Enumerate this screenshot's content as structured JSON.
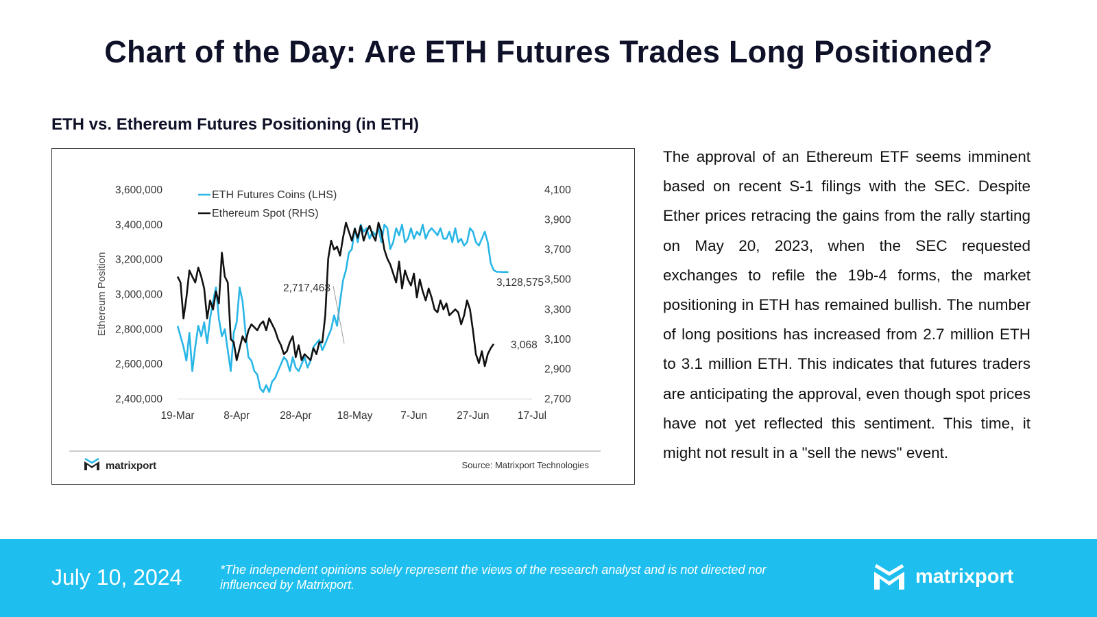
{
  "page": {
    "title": "Chart of the Day: Are ETH Futures Trades Long Positioned?",
    "chart_heading": "ETH vs. Ethereum Futures Positioning (in ETH)",
    "body_text": "The approval of an Ethereum ETF seems imminent based on recent S-1 filings with the SEC. Despite Ether prices retracing the gains from the rally starting on May 20, 2023, when the SEC requested exchanges to refile the 19b-4 forms, the market positioning in ETH has remained bullish. The number of long positions has increased from 2.7 million ETH to 3.1 million ETH. This indicates that futures traders are anticipating the approval, even though spot prices have not yet reflected this sentiment. This time, it might not result in a \"sell the news\" event."
  },
  "footer": {
    "date": "July 10, 2024",
    "disclaimer": "*The independent opinions solely represent the views of the research analyst and is not directed nor influenced by Matrixport.",
    "logo_text": "matrixport"
  },
  "chart_data": {
    "type": "line",
    "y_left_label": "Ethereum Position",
    "y_left_range": [
      2400000,
      3600000
    ],
    "y_left_ticks": [
      "3,600,000",
      "3,400,000",
      "3,200,000",
      "3,000,000",
      "2,800,000",
      "2,600,000",
      "2,400,000"
    ],
    "y_right_range": [
      2700,
      4100
    ],
    "y_right_ticks": [
      "4,100",
      "3,900",
      "3,700",
      "3,500",
      "3,300",
      "3,100",
      "2,900",
      "2,700"
    ],
    "x_ticks": [
      "19-Mar",
      "8-Apr",
      "28-Apr",
      "18-May",
      "7-Jun",
      "27-Jun",
      "17-Jul"
    ],
    "x_range_days": [
      0,
      120
    ],
    "legend": [
      "ETH Futures Coins (LHS)",
      "Ethereum Spot (RHS)"
    ],
    "annotations": {
      "futures_low": "2,717,463",
      "futures_last": "3,128,575",
      "spot_last": "3,068"
    },
    "logo_text": "matrixport",
    "source": "Source: Matrixport Technologies",
    "colors": {
      "futures": "#29b6e6",
      "spot": "#111111"
    },
    "series": [
      {
        "name": "ETH Futures Coins (LHS)",
        "axis": "left",
        "x": [
          0,
          1,
          2,
          3,
          4,
          5,
          6,
          7,
          8,
          9,
          10,
          11,
          12,
          13,
          14,
          15,
          16,
          17,
          18,
          19,
          20,
          21,
          22,
          23,
          24,
          25,
          26,
          27,
          28,
          29,
          30,
          31,
          32,
          33,
          34,
          35,
          36,
          37,
          38,
          39,
          40,
          41,
          42,
          43,
          44,
          45,
          46,
          47,
          48,
          49,
          50,
          51,
          52,
          53,
          54,
          55,
          56,
          57,
          58,
          59,
          60,
          61,
          62,
          63,
          64,
          65,
          66,
          67,
          68,
          69,
          70,
          71,
          72,
          73,
          74,
          75,
          76,
          77,
          78,
          79,
          80,
          81,
          82,
          83,
          84,
          85,
          86,
          87,
          88,
          89,
          90,
          91,
          92,
          93,
          94,
          95,
          96,
          97,
          98,
          99,
          100,
          101,
          102,
          103,
          104,
          105,
          106,
          107,
          108,
          109,
          110,
          111,
          112
        ],
        "values": [
          2820000,
          2760000,
          2700000,
          2620000,
          2780000,
          2560000,
          2700000,
          2820000,
          2760000,
          2840000,
          2720000,
          2860000,
          2960000,
          3040000,
          2860000,
          2760000,
          2800000,
          2680000,
          2560000,
          2780000,
          2840000,
          3040000,
          2960000,
          2780000,
          2640000,
          2620000,
          2560000,
          2540000,
          2460000,
          2440000,
          2480000,
          2440000,
          2500000,
          2520000,
          2560000,
          2600000,
          2640000,
          2620000,
          2560000,
          2640000,
          2580000,
          2560000,
          2600000,
          2640000,
          2580000,
          2620000,
          2700000,
          2720000,
          2740000,
          2680000,
          2717463,
          2760000,
          2800000,
          2880000,
          2820000,
          2960000,
          3080000,
          3140000,
          3240000,
          3260000,
          3380000,
          3300000,
          3400000,
          3360000,
          3380000,
          3320000,
          3360000,
          3340000,
          3380000,
          3300000,
          3400000,
          3380000,
          3260000,
          3300000,
          3380000,
          3340000,
          3400000,
          3300000,
          3320000,
          3380000,
          3320000,
          3360000,
          3340000,
          3400000,
          3320000,
          3360000,
          3380000,
          3360000,
          3340000,
          3380000,
          3320000,
          3320000,
          3360000,
          3300000,
          3380000,
          3300000,
          3320000,
          3280000,
          3300000,
          3380000,
          3360000,
          3300000,
          3280000,
          3320000,
          3360000,
          3300000,
          3180000,
          3140000,
          3130000,
          3130000,
          3128575,
          3128575,
          3128575
        ]
      },
      {
        "name": "Ethereum Spot (RHS)",
        "axis": "right",
        "x": [
          0,
          1,
          2,
          3,
          4,
          5,
          6,
          7,
          8,
          9,
          10,
          11,
          12,
          13,
          14,
          15,
          16,
          17,
          18,
          19,
          20,
          21,
          22,
          23,
          24,
          25,
          26,
          27,
          28,
          29,
          30,
          31,
          32,
          33,
          34,
          35,
          36,
          37,
          38,
          39,
          40,
          41,
          42,
          43,
          44,
          45,
          46,
          47,
          48,
          49,
          50,
          51,
          52,
          53,
          54,
          55,
          56,
          57,
          58,
          59,
          60,
          61,
          62,
          63,
          64,
          65,
          66,
          67,
          68,
          69,
          70,
          71,
          72,
          73,
          74,
          75,
          76,
          77,
          78,
          79,
          80,
          81,
          82,
          83,
          84,
          85,
          86,
          87,
          88,
          89,
          90,
          91,
          92,
          93,
          94,
          95,
          96,
          97,
          98,
          99,
          100,
          101,
          102,
          103,
          104,
          105,
          106,
          107
        ],
        "values": [
          3520,
          3480,
          3240,
          3380,
          3560,
          3520,
          3480,
          3580,
          3520,
          3440,
          3240,
          3360,
          3300,
          3420,
          3340,
          3680,
          3520,
          3480,
          3100,
          3080,
          2960,
          3040,
          3120,
          3080,
          3160,
          3200,
          3180,
          3160,
          3200,
          3220,
          3160,
          3240,
          3200,
          3160,
          3100,
          3060,
          3000,
          3020,
          3080,
          3120,
          2980,
          3060,
          2960,
          3000,
          2980,
          2960,
          3040,
          3000,
          3080,
          3080,
          3260,
          3640,
          3760,
          3700,
          3720,
          3660,
          3780,
          3880,
          3820,
          3760,
          3840,
          3780,
          3860,
          3760,
          3820,
          3860,
          3800,
          3760,
          3880,
          3820,
          3700,
          3640,
          3600,
          3540,
          3480,
          3620,
          3440,
          3560,
          3500,
          3460,
          3540,
          3380,
          3500,
          3420,
          3360,
          3440,
          3380,
          3300,
          3280,
          3360,
          3300,
          3340,
          3260,
          3280,
          3300,
          3280,
          3200,
          3260,
          3360,
          3300,
          3160,
          3000,
          2940,
          3020,
          2920,
          3000,
          3040,
          3068
        ]
      }
    ]
  }
}
